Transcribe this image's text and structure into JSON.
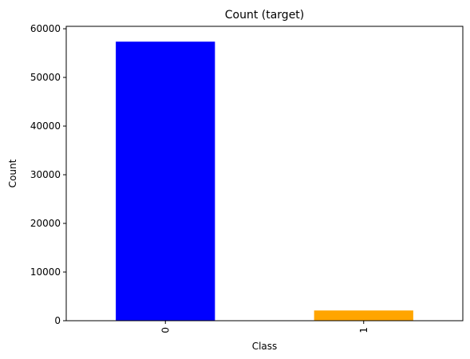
{
  "chart_data": {
    "type": "bar",
    "title": "Count (target)",
    "xlabel": "Class",
    "ylabel": "Count",
    "categories": [
      "0",
      "1"
    ],
    "values": [
      57350,
      2100
    ],
    "ylim": [
      0,
      60500
    ],
    "yticks": [
      0,
      10000,
      20000,
      30000,
      40000,
      50000,
      60000
    ],
    "ytick_labels": [
      "0",
      "10000",
      "20000",
      "30000",
      "40000",
      "50000",
      "60000"
    ],
    "xtick_rotation": "vertical",
    "bar_colors": [
      "#0000ff",
      "#ffa500"
    ],
    "grid": false,
    "legend": "none"
  }
}
